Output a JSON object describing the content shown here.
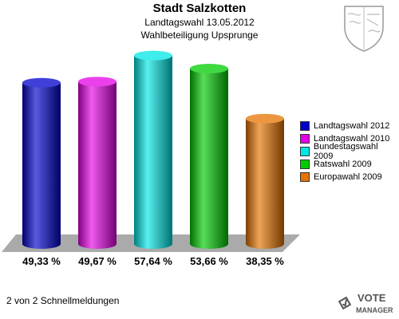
{
  "header": {
    "title": "Stadt Salzkotten",
    "subtitle1": "Landtagswahl 13.05.2012",
    "subtitle2": "Wahlbeteiligung Upsprunge"
  },
  "footer": {
    "text": "2 von 2 Schnellmeldungen"
  },
  "logo": {
    "line1": "VOTE",
    "line2": "MANAGER"
  },
  "chart_data": {
    "type": "bar",
    "categories": [
      "Landtagswahl 2012",
      "Landtagswahl 2010",
      "Bundestagswahl 2009",
      "Ratswahl 2009",
      "Europawahl 2009"
    ],
    "values": [
      49.33,
      49.67,
      57.64,
      53.66,
      38.35
    ],
    "value_labels": [
      "49,33 %",
      "49,67 %",
      "57,64 %",
      "53,66 %",
      "38,35 %"
    ],
    "colors": [
      "#0000cc",
      "#e600e6",
      "#00e6e6",
      "#00cc00",
      "#e67300"
    ],
    "title": "Stadt Salzkotten",
    "legend_position": "right",
    "grid": false
  }
}
